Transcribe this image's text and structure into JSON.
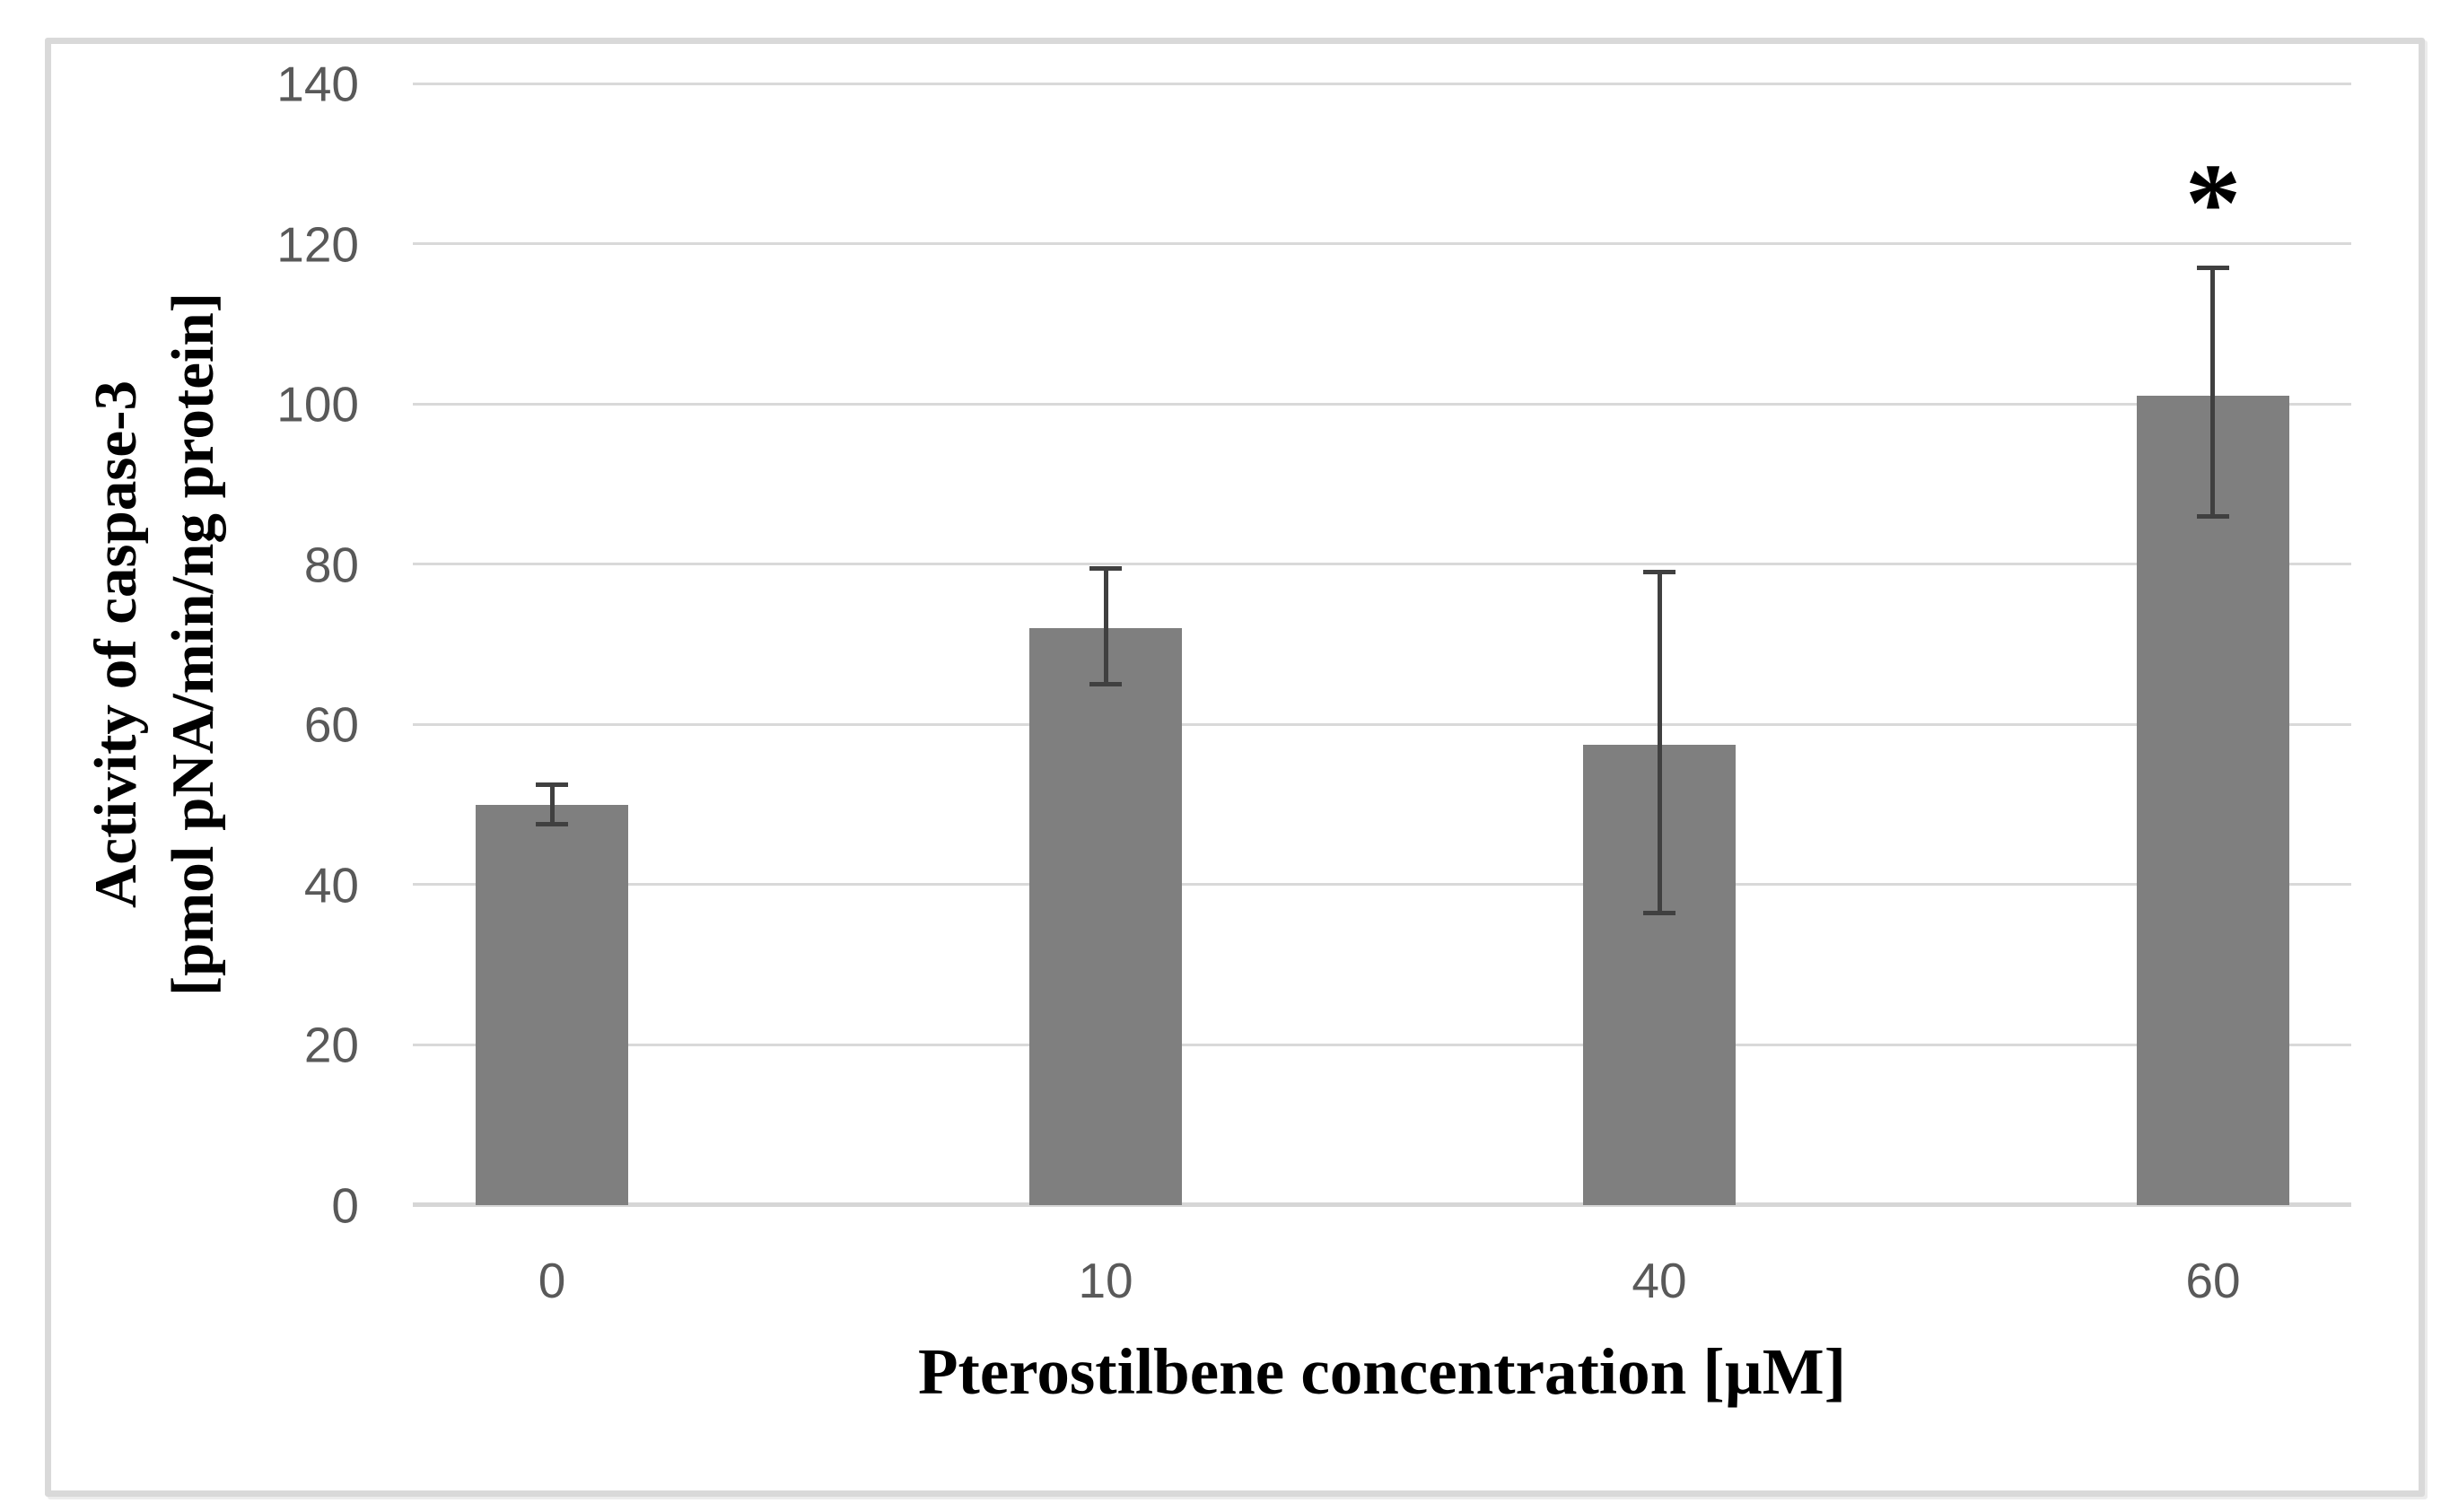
{
  "figure": {
    "background_color": "#ffffff",
    "frame_border_color": "#d9d9d9"
  },
  "chart_data": {
    "type": "bar",
    "title": "",
    "categories": [
      "0",
      "10",
      "40",
      "60"
    ],
    "values": [
      50,
      72,
      57.5,
      101
    ],
    "error_whisker_top": [
      52.5,
      79.5,
      79,
      117
    ],
    "error_whisker_bottom": [
      47.5,
      65,
      36.5,
      86
    ],
    "significance_labels": [
      "",
      "",
      "",
      "*"
    ],
    "significance_y": 127.5,
    "xlabel": "Pterostilbene concentration [µM]",
    "ylabel_line1": "Activity of caspase-3",
    "ylabel_line2": "[pmol pNA/min/ng protein]",
    "ylim": [
      0,
      140
    ],
    "yticks": [
      0,
      20,
      40,
      60,
      80,
      100,
      120,
      140
    ],
    "grid": "horizontal",
    "legend": "none",
    "bar_color": "#7f7f7f",
    "error_bar_color": "#404040",
    "gridline_color": "#d9d9d9",
    "axis_line_color": "#d6d6d6",
    "tick_label_color": "#595959",
    "axis_title_color": "#000000"
  }
}
